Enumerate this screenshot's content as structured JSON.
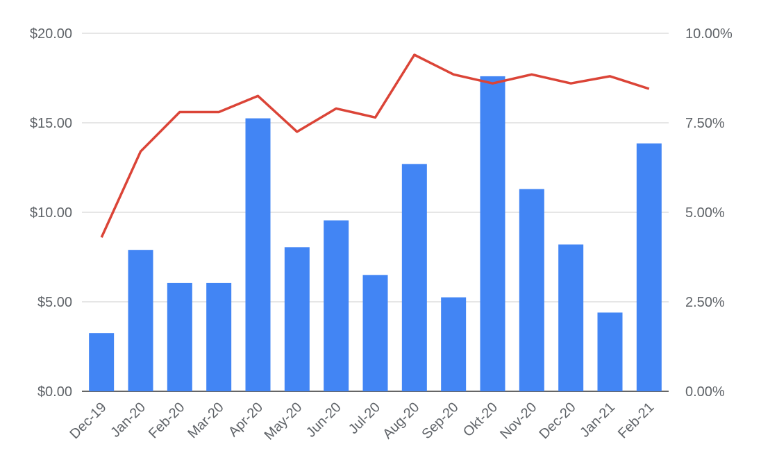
{
  "chart_data": {
    "type": "bar",
    "title": "",
    "xlabel": "",
    "ylabel": "",
    "categories": [
      "Dec-19",
      "Jan-20",
      "Feb-20",
      "Mar-20",
      "Apr-20",
      "May-20",
      "Jun-20",
      "Jul-20",
      "Aug-20",
      "Sep-20",
      "Okt-20",
      "Nov-20",
      "Dec-20",
      "Jan-21",
      "Feb-21"
    ],
    "series": [
      {
        "type": "bar",
        "axis": "left",
        "color": "#4285f4",
        "values": [
          3.25,
          7.9,
          6.05,
          6.05,
          15.25,
          8.05,
          9.55,
          6.5,
          12.7,
          5.25,
          17.6,
          11.3,
          8.2,
          4.4,
          13.85
        ]
      },
      {
        "type": "line",
        "axis": "right",
        "color": "#db4437",
        "values": [
          4.3,
          6.7,
          7.8,
          7.8,
          8.25,
          7.25,
          7.9,
          7.65,
          9.4,
          8.85,
          8.6,
          8.85,
          8.6,
          8.8,
          8.45
        ]
      }
    ],
    "ylim": [
      0,
      20
    ],
    "y2lim": [
      0,
      10
    ],
    "y_ticks": [
      "$0.00",
      "$5.00",
      "$10.00",
      "$15.00",
      "$20.00"
    ],
    "y2_ticks": [
      "0.00%",
      "2.50%",
      "5.00%",
      "7.50%",
      "10.00%"
    ],
    "grid": true,
    "legend": "none"
  }
}
